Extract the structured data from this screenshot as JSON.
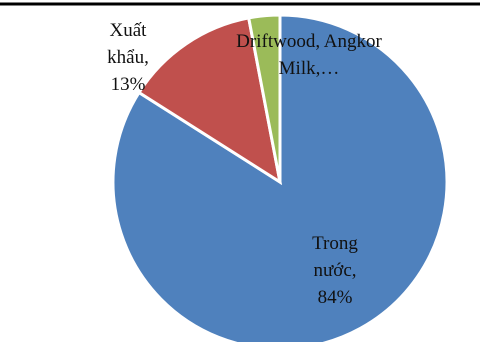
{
  "chart_data": {
    "type": "pie",
    "categories": [
      "Trong nước,",
      "Xuất khẩu,",
      "Driftwood, Angkor Milk,…"
    ],
    "values": [
      84,
      13,
      3
    ],
    "value_labels": [
      "84%",
      "13%",
      null
    ],
    "colors": [
      "#4f81bd",
      "#c0504d",
      "#9bbb59"
    ]
  }
}
